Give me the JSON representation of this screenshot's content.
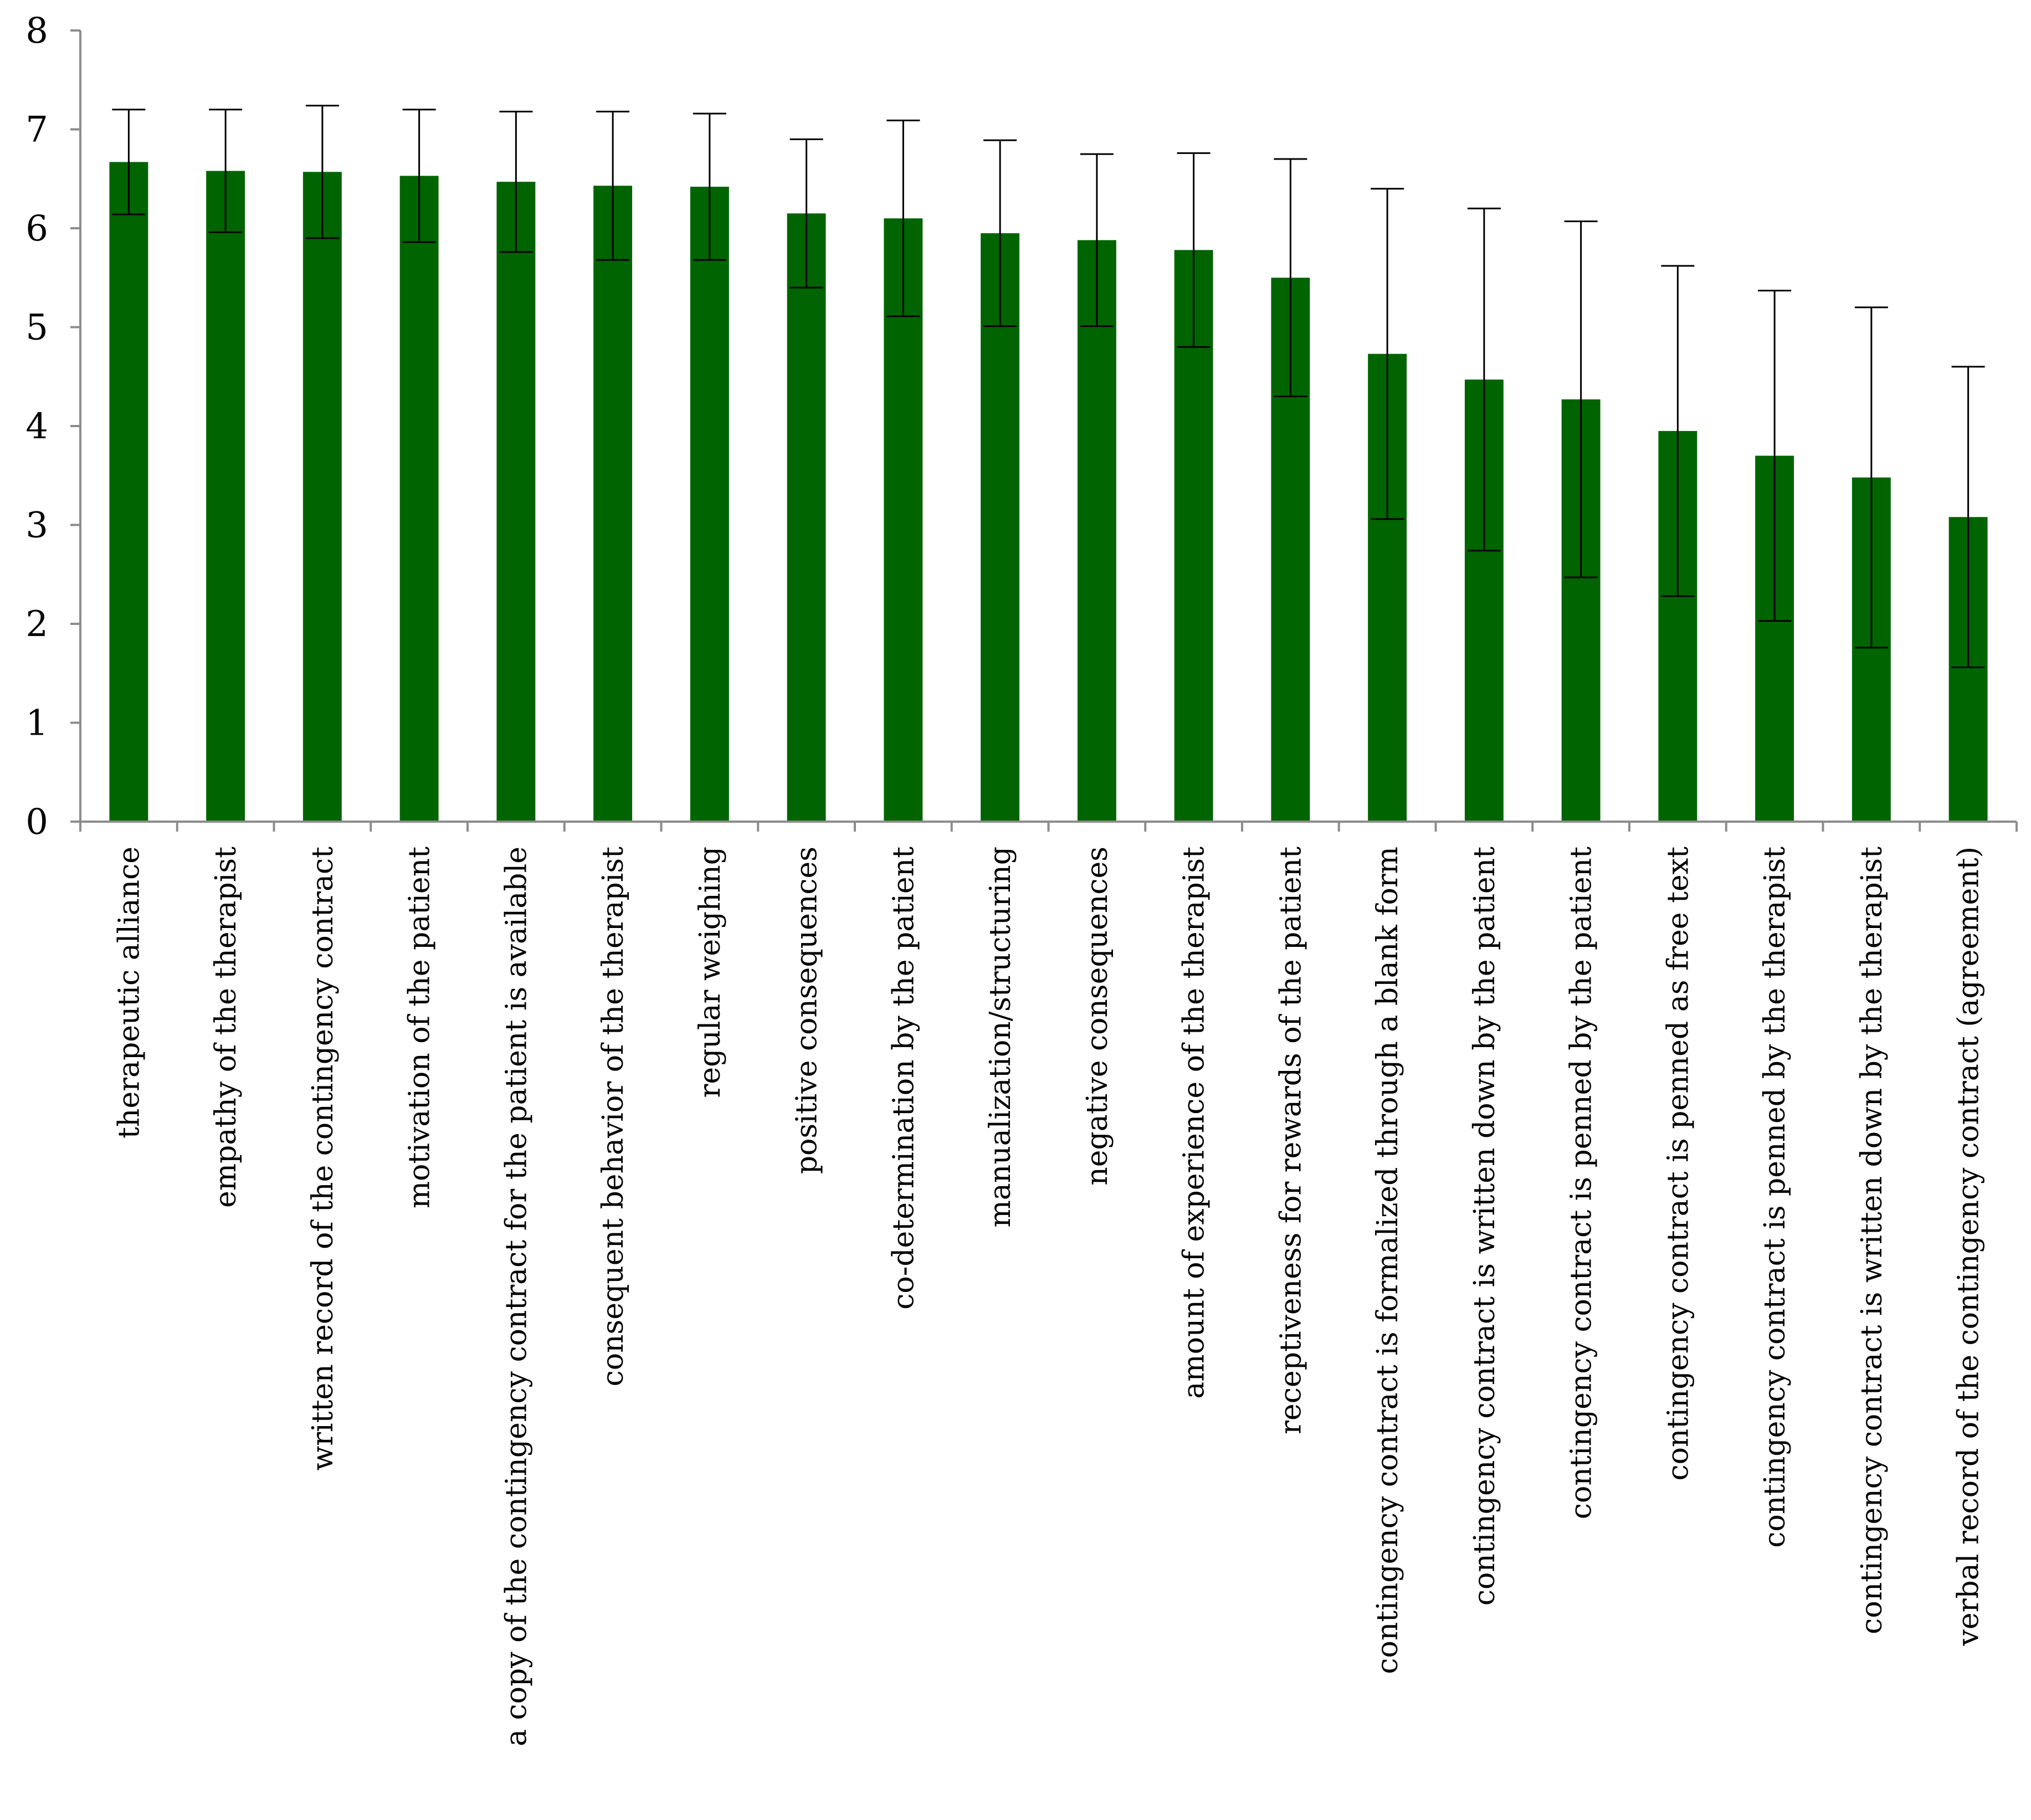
{
  "chart_data": {
    "type": "bar",
    "title": "",
    "xlabel": "",
    "ylabel": "",
    "ylim": [
      0,
      8
    ],
    "yticks": [
      0,
      1,
      2,
      3,
      4,
      5,
      6,
      7,
      8
    ],
    "grid": false,
    "legend": "none",
    "bar_color": "#006400",
    "categories": [
      "therapeutic alliance",
      "empathy of the therapist",
      "written record of the contingency contract",
      "motivation of the patient",
      "a copy of the contingency contract for the patient is available",
      "consequent behavior of the therapist",
      "regular weighing",
      "positive consequences",
      "co-determination by the patient",
      "manualization/structuring",
      "negative consequences",
      "amount of experience of the therapist",
      "receptiveness for rewards of the patient",
      "contingency contract is formalized through a blank form",
      "contingency contract is written down by the patient",
      "contingency contract is penned by the patient",
      "contingency contract is penned as free text",
      "contingency contract is penned by the therapist",
      "contingency contract is written down by the therapist",
      "verbal record of the contingency contract (agreement)"
    ],
    "series": [
      {
        "values": [
          6.67,
          6.58,
          6.57,
          6.53,
          6.47,
          6.43,
          6.42,
          6.15,
          6.1,
          5.95,
          5.88,
          5.78,
          5.5,
          4.73,
          4.47,
          4.27,
          3.95,
          3.7,
          3.48,
          3.08
        ],
        "error": [
          0.53,
          0.62,
          0.67,
          0.67,
          0.71,
          0.75,
          0.74,
          0.75,
          0.99,
          0.94,
          0.87,
          0.98,
          1.2,
          1.67,
          1.73,
          1.8,
          1.67,
          1.67,
          1.72,
          1.52
        ]
      }
    ]
  }
}
